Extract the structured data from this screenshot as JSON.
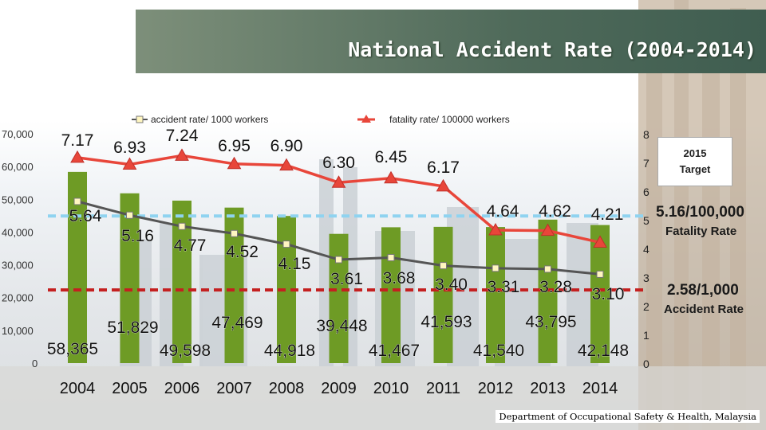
{
  "title": "National Accident Rate (2004-2014)",
  "target": {
    "heading": "2015",
    "subheading": "Target",
    "fatality_rate": "5.16/100,000",
    "fatality_label": "Fatality Rate",
    "accident_rate": "2.58/1,000",
    "accident_label": "Accident Rate"
  },
  "footer": "Department of Occupational Safety & Health, Malaysia",
  "colors": {
    "bars": "#6e9b25",
    "accident_line": "#555555",
    "fatality_line": "#e8463a",
    "target_fatality": "#8fd3f0",
    "target_accident": "#c42020"
  },
  "chart_data": {
    "type": "bar",
    "title": "National Accident Rate (2004-2014)",
    "categories": [
      "2004",
      "2005",
      "2006",
      "2007",
      "2008",
      "2009",
      "2010",
      "2011",
      "2012",
      "2013",
      "2014"
    ],
    "bar_series": {
      "name": "accidents",
      "axis": "left",
      "values": [
        58365,
        51829,
        49598,
        47469,
        44918,
        39448,
        41467,
        41593,
        41540,
        43795,
        42148
      ],
      "labels": [
        "58,365",
        "51,829",
        "49,598",
        "47,469",
        "44,918",
        "39,448",
        "41,467",
        "41,593",
        "41,540",
        "43,795",
        "42,148"
      ]
    },
    "line_series": [
      {
        "name": "accident rate/ 1000 workers",
        "axis": "right",
        "values": [
          5.64,
          5.16,
          4.77,
          4.52,
          4.15,
          3.61,
          3.68,
          3.4,
          3.31,
          3.28,
          3.1
        ],
        "labels": [
          "5.64",
          "5.16",
          "4.77",
          "4.52",
          "4.15",
          "3.61",
          "3.68",
          "3.40",
          "3.31",
          "3.28",
          "3.10"
        ]
      },
      {
        "name": "fatality rate/ 100000 workers",
        "axis": "right",
        "values": [
          7.17,
          6.93,
          7.24,
          6.95,
          6.9,
          6.3,
          6.45,
          6.17,
          4.64,
          4.62,
          4.21
        ],
        "labels": [
          "7.17",
          "6.93",
          "7.24",
          "6.95",
          "6.90",
          "6.30",
          "6.45",
          "6.17",
          "4.64",
          "4.62",
          "4.21"
        ]
      }
    ],
    "y_left": {
      "ylim": [
        0,
        70000
      ],
      "ticks": [
        "0",
        "10,000",
        "20,000",
        "30,000",
        "40,000",
        "50,000",
        "60,000",
        "70,000"
      ]
    },
    "y_right": {
      "ylim": [
        0,
        8
      ],
      "ticks": [
        "0",
        "1",
        "2",
        "3",
        "4",
        "5",
        "6",
        "7",
        "8"
      ]
    },
    "targets": [
      {
        "name": "fatality target",
        "value": 5.16
      },
      {
        "name": "accident target",
        "value": 2.58
      }
    ],
    "legend": "top"
  }
}
